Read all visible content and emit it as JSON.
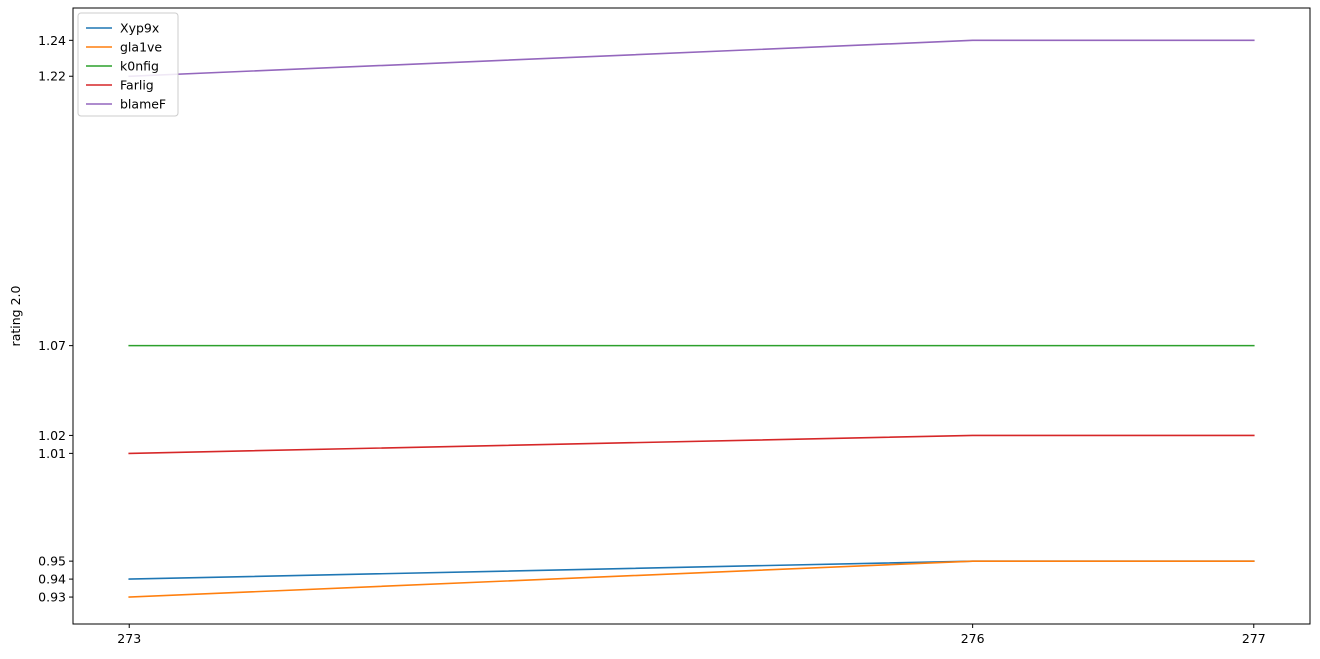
{
  "chart_data": {
    "type": "line",
    "title": "",
    "xlabel": "",
    "ylabel": "rating 2.0",
    "x": [
      273,
      276,
      277
    ],
    "xticks": [
      273,
      276,
      277
    ],
    "yticks": [
      0.93,
      0.94,
      0.95,
      1.01,
      1.02,
      1.07,
      1.22,
      1.24
    ],
    "xlim": [
      272.8,
      277.2
    ],
    "ylim": [
      0.915,
      1.258
    ],
    "grid": false,
    "legend": "top-left",
    "series": [
      {
        "name": "Xyp9x",
        "color": "#1f77b4",
        "values": [
          0.94,
          0.95,
          0.95
        ]
      },
      {
        "name": "gla1ve",
        "color": "#ff7f0e",
        "values": [
          0.93,
          0.95,
          0.95
        ]
      },
      {
        "name": "k0nfig",
        "color": "#2ca02c",
        "values": [
          1.07,
          1.07,
          1.07
        ]
      },
      {
        "name": "Farlig",
        "color": "#d62728",
        "values": [
          1.01,
          1.02,
          1.02
        ]
      },
      {
        "name": "blameF",
        "color": "#9467bd",
        "values": [
          1.22,
          1.24,
          1.24
        ]
      }
    ]
  }
}
